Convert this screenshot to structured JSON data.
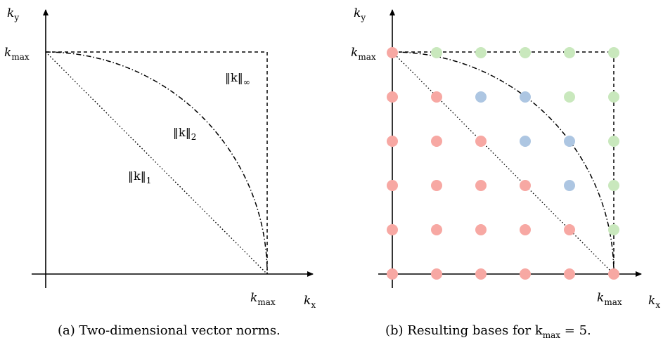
{
  "panel_a": {
    "axis_x_label": "k",
    "axis_x_sub": "x",
    "axis_y_label": "k",
    "axis_y_sub": "y",
    "kmax_x": "k",
    "kmax_x_sub": "max",
    "kmax_y": "k",
    "kmax_y_sub": "max",
    "norm_inf": "‖k‖",
    "norm_inf_sub": "∞",
    "norm_2": "‖k‖",
    "norm_2_sub": "2",
    "norm_1": "‖k‖",
    "norm_1_sub": "1",
    "caption": "(a) Two-dimensional vector norms."
  },
  "panel_b": {
    "axis_x_label": "k",
    "axis_x_sub": "x",
    "axis_y_label": "k",
    "axis_y_sub": "y",
    "kmax_x": "k",
    "kmax_x_sub": "max",
    "kmax_y": "k",
    "kmax_y_sub": "max",
    "caption": "(b) Resulting bases for k",
    "caption_sub": "max",
    "caption_tail": " = 5.",
    "kmax_value": 5,
    "colors": {
      "l1": "#f7a8a3",
      "l2": "#adc6e2",
      "linf": "#c9e8bd"
    }
  }
}
